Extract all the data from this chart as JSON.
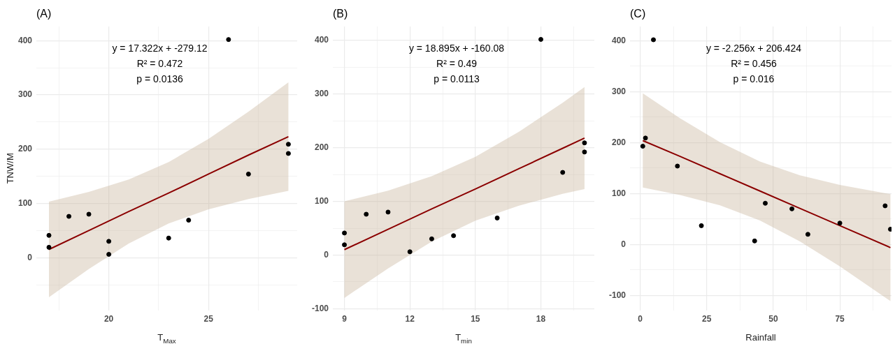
{
  "chart_data": [
    {
      "type": "scatter",
      "title": "(A)",
      "xlabel": "T$_{Max}$",
      "ylabel": "TNW/M",
      "xlim": [
        16.37,
        29.44
      ],
      "ylim": [
        -97,
        426
      ],
      "xticks": [
        {
          "value": 17.5,
          "label": null
        },
        20,
        {
          "value": 22.5,
          "label": null
        },
        25,
        {
          "value": 27.5,
          "label": null
        }
      ],
      "yticks": [
        {
          "value": -50,
          "label": null
        },
        0,
        {
          "value": 50,
          "label": null
        },
        100,
        {
          "value": 150,
          "label": null
        },
        200,
        {
          "value": 250,
          "label": null
        },
        300,
        {
          "value": 350,
          "label": null
        },
        400
      ],
      "grid": true,
      "annotations": [
        "y = 17.322x + -279.12",
        "R² = 0.472",
        "p = 0.0136"
      ],
      "series": [
        {
          "color": "#000000",
          "marker": "circle",
          "x": [
            17,
            17,
            18,
            19,
            20,
            20,
            23,
            24,
            26,
            27,
            29,
            29
          ],
          "values": [
            41,
            19,
            76,
            80,
            30,
            6,
            36,
            69,
            402,
            154,
            209,
            192
          ]
        },
        {
          "type": "line",
          "color": "#8b0000",
          "marker": "none",
          "x": [
            17,
            19,
            21,
            23,
            25,
            27,
            29
          ],
          "values": [
            15,
            50,
            85,
            119,
            154,
            189,
            223
          ],
          "lower": [
            -73,
            -21,
            26,
            63,
            89,
            108,
            123
          ],
          "upper": [
            103,
            121,
            144,
            176,
            219,
            269,
            323
          ]
        }
      ]
    },
    {
      "type": "scatter",
      "title": "(B)",
      "xlabel": "T$_{min}$",
      "xlim": [
        8.47,
        20.45
      ],
      "ylim": [
        -103,
        426
      ],
      "xticks": [
        9,
        {
          "value": 10.5,
          "label": null
        },
        12,
        {
          "value": 13.5,
          "label": null
        },
        15,
        {
          "value": 16.5,
          "label": null
        },
        18,
        {
          "value": 19.5,
          "label": null
        }
      ],
      "yticks": [
        -100,
        {
          "value": -50,
          "label": null
        },
        0,
        {
          "value": 50,
          "label": null
        },
        100,
        {
          "value": 150,
          "label": null
        },
        200,
        {
          "value": 250,
          "label": null
        },
        300,
        {
          "value": 350,
          "label": null
        },
        400
      ],
      "grid": true,
      "annotations": [
        "y = 18.895x + -160.08",
        "R² = 0.49",
        "p = 0.0113"
      ],
      "series": [
        {
          "color": "#000000",
          "marker": "circle",
          "x": [
            9,
            9,
            10,
            11,
            12,
            13,
            14,
            16,
            18,
            19,
            20,
            20
          ],
          "values": [
            41,
            19,
            76,
            80,
            6,
            30,
            36,
            69,
            402,
            154,
            209,
            192
          ]
        },
        {
          "type": "line",
          "color": "#8b0000",
          "marker": "none",
          "x": [
            9,
            11,
            13,
            15,
            17,
            19,
            20
          ],
          "values": [
            10,
            48,
            86,
            123,
            161,
            199,
            218
          ],
          "lower": [
            -80,
            -25,
            25,
            64,
            92,
            114,
            123
          ],
          "upper": [
            100,
            120,
            147,
            183,
            230,
            284,
            313
          ]
        }
      ]
    },
    {
      "type": "scatter",
      "title": "(C)",
      "xlabel": "Rainfall",
      "xlim": [
        -3.8,
        94.4
      ],
      "ylim": [
        -129,
        428
      ],
      "xticks": [
        0,
        {
          "value": 12.5,
          "label": null
        },
        25,
        {
          "value": 37.5,
          "label": null
        },
        50,
        {
          "value": 62.5,
          "label": null
        },
        75,
        {
          "value": 87.5,
          "label": null
        }
      ],
      "yticks": [
        -100,
        {
          "value": -50,
          "label": null
        },
        0,
        {
          "value": 50,
          "label": null
        },
        100,
        {
          "value": 150,
          "label": null
        },
        200,
        {
          "value": 250,
          "label": null
        },
        300,
        {
          "value": 350,
          "label": null
        },
        400
      ],
      "grid": true,
      "annotations": [
        "y = -2.256x + 206.424",
        "R² = 0.456",
        "p = 0.016"
      ],
      "series": [
        {
          "color": "#000000",
          "marker": "circle",
          "x": [
            1,
            2,
            5,
            14,
            23,
            43,
            47,
            57,
            63,
            75,
            92,
            94
          ],
          "values": [
            193,
            209,
            402,
            154,
            37,
            7,
            81,
            70,
            20,
            42,
            76,
            30
          ]
        },
        {
          "type": "line",
          "color": "#8b0000",
          "marker": "none",
          "x": [
            1,
            15,
            30,
            45,
            60,
            75,
            94
          ],
          "values": [
            204,
            173,
            139,
            105,
            71,
            37,
            -6
          ],
          "lower": [
            112,
            97,
            77,
            47,
            6,
            -43,
            -111
          ],
          "upper": [
            297,
            248,
            201,
            163,
            136,
            117,
            99
          ]
        }
      ]
    }
  ]
}
